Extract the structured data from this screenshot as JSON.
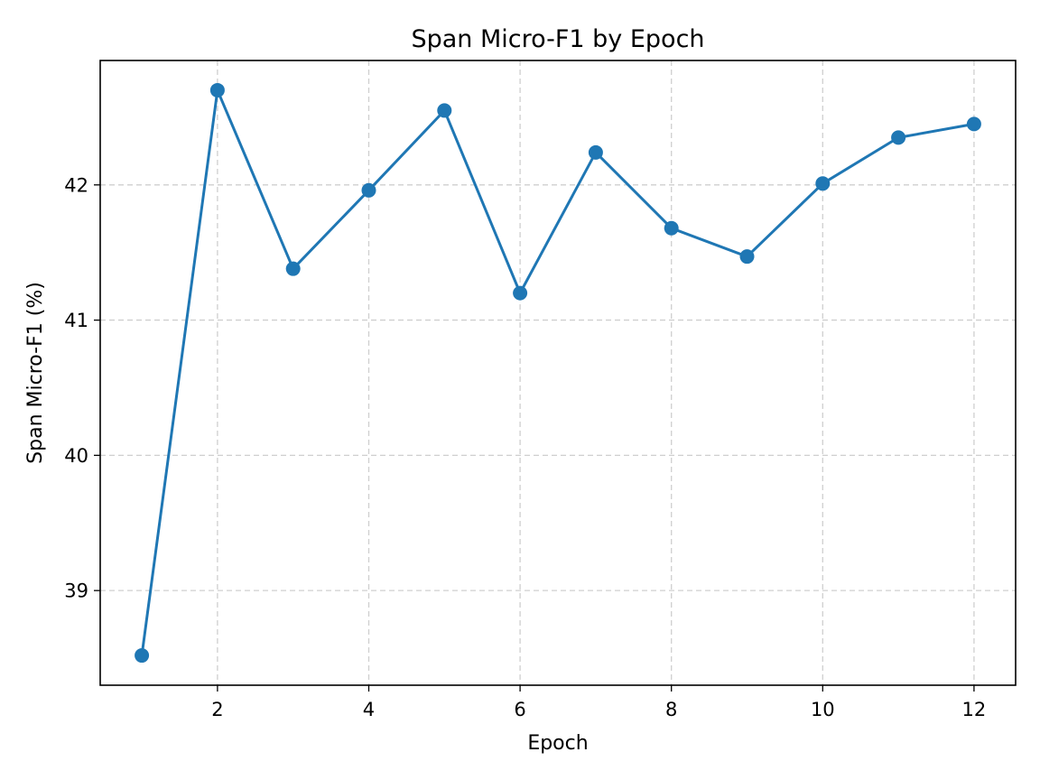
{
  "chart_data": {
    "type": "line",
    "title": "Span Micro-F1 by Epoch",
    "xlabel": "Epoch",
    "ylabel": "Span Micro-F1 (%)",
    "x": [
      1,
      2,
      3,
      4,
      5,
      6,
      7,
      8,
      9,
      10,
      11,
      12
    ],
    "series": [
      {
        "values": [
          38.52,
          42.7,
          41.38,
          41.96,
          42.55,
          41.2,
          42.24,
          41.68,
          41.47,
          42.01,
          42.35,
          42.45
        ],
        "color": "#1f77b4",
        "marker": "circle"
      }
    ],
    "xlim": [
      0.45,
      12.55
    ],
    "ylim": [
      38.3,
      42.92
    ],
    "xticks": [
      2,
      4,
      6,
      8,
      10,
      12
    ],
    "yticks": [
      39,
      40,
      41,
      42
    ],
    "grid": true,
    "grid_style": "dashed",
    "legend": false
  }
}
